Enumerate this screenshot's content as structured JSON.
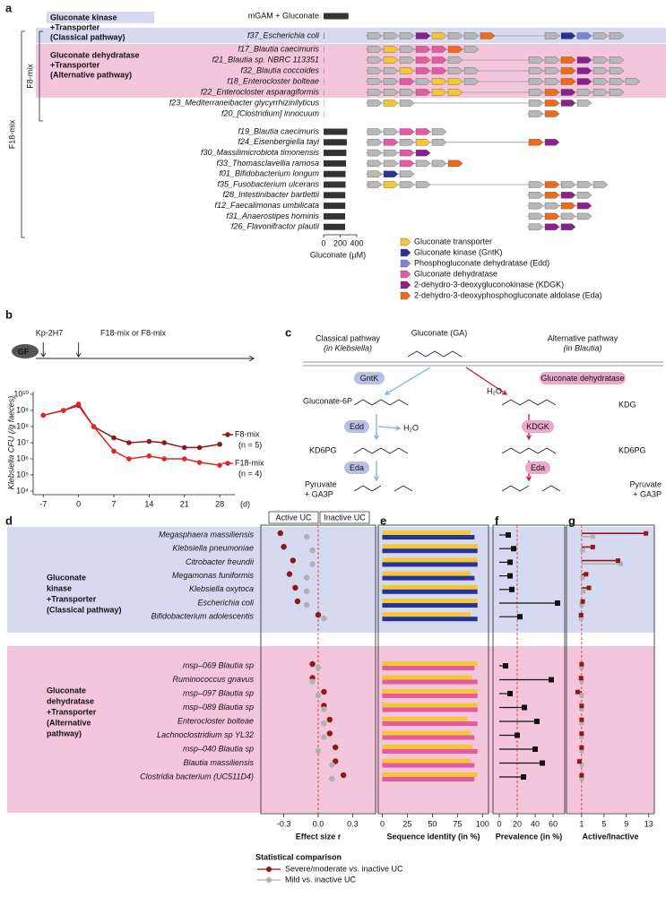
{
  "labels": [
    "a",
    "b",
    "c",
    "d",
    "e",
    "f",
    "g"
  ],
  "panel_a": {
    "type": "bar",
    "groups": [
      {
        "lines": [
          "Gluconate kinase",
          "+Transporter",
          "(Classical pathway)"
        ],
        "color": "#d6daf1",
        "title_color": "#26349a"
      },
      {
        "lines": [
          "Gluconate dehydratase",
          "+Transporter",
          "(Alternative pathway)"
        ],
        "color": "#f4c6dc",
        "title_color": "#c8143c"
      }
    ],
    "brackets": [
      "F8-mix",
      "F18-mix"
    ],
    "strains": [
      "mGAM + Gluconate",
      "f37_Escherichia coli",
      "f17_Blautia caecimuris",
      "f21_Blautia sp. NBRC 113351",
      "f32_Blautia coccoides",
      "f18_Enterocloster bolteae",
      "f22_Enterocloster asparagiformis",
      "f23_Mediterraneibacter glycyrrhizinilyticus",
      "f20_[Clostridium] innocuum",
      "f19_Blautia caecimuris",
      "f24_Eisenbergiella tayi",
      "f30_Massilimicrobiota timonensis",
      "f33_Thomasclavellia ramosa",
      "f01_Bifidobacterium longum",
      "f35_Fusobacterium ulcerans",
      "f28_Intestinibacter bartlettii",
      "f12_Faecalimonas umbilicata",
      "f31_Anaerostipes hominis",
      "f26_Flavonifractor plautii"
    ],
    "values": [
      300,
      5,
      3,
      3,
      3,
      3,
      3,
      3,
      3,
      285,
      280,
      275,
      270,
      265,
      265,
      262,
      262,
      260,
      260
    ],
    "color": "#333333",
    "xlim": [
      0,
      400
    ],
    "xticks": [
      0,
      200,
      400
    ],
    "xlabel": "Gluconate (μM)",
    "other_gene_color": "#b8b8b8",
    "legend": [
      {
        "name": "Gluconate transporter",
        "color": "#f6c634"
      },
      {
        "name": "Gluconate kinase (GntK)",
        "color": "#26349a"
      },
      {
        "name": "Phosphogluconate dehydratase (Edd)",
        "color": "#7b86d6"
      },
      {
        "name": "Gluconate dehydratase",
        "color": "#e65aa4"
      },
      {
        "name": "2-dehydro-3-deoxygluconokinase (KDGK)",
        "color": "#8b1f8f"
      },
      {
        "name": "2-dehydro-3-deoxyphosphogluconate aldolase (Eda)",
        "color": "#f06a1c"
      }
    ]
  },
  "panel_b": {
    "type": "line",
    "icon": "GF",
    "events": [
      "Kp-2H7",
      "F18-mix or F8-mix"
    ],
    "ylabel": "Klebsiella CFU (/g faeces)",
    "x": [
      -7,
      -3,
      0,
      3,
      7,
      10,
      14,
      17,
      21,
      24,
      28
    ],
    "series": [
      {
        "name": "F8-mix",
        "n": "(n = 5)",
        "color": "#8b1a1a",
        "values": [
          500000000,
          1000000000,
          2000000000,
          100000000,
          20000000,
          10000000,
          12000000,
          10000000,
          5000000,
          5000000,
          8000000
        ]
      },
      {
        "name": "F18-mix",
        "n": "(n = 4)",
        "color": "#e0262b",
        "values": [
          500000000,
          1000000000,
          2500000000,
          100000000,
          3000000,
          1000000,
          1500000,
          1000000,
          1000000,
          600000,
          400000
        ]
      }
    ],
    "xlim": [
      -9,
      31
    ],
    "xticks": [
      -7,
      0,
      7,
      14,
      21,
      28
    ],
    "xunit": "(d)",
    "log": true,
    "ylim": [
      10000,
      10000000000
    ],
    "yticks": [
      {
        "value": 10000,
        "label": "10⁴"
      },
      {
        "value": 100000,
        "label": "10⁵"
      },
      {
        "value": 1000000,
        "label": "10⁶"
      },
      {
        "value": 10000000,
        "label": "10⁷"
      },
      {
        "value": 100000000,
        "label": "10⁸"
      },
      {
        "value": 1000000000,
        "label": "10⁹"
      },
      {
        "value": 10000000000,
        "label": "10¹⁰"
      }
    ]
  },
  "panel_c": {
    "substrate": "Gluconate (GA)",
    "classical": [
      "Classical pathway",
      "(in Klebsiella)"
    ],
    "alternative": [
      "Alternative pathway",
      "(in Blautia)"
    ],
    "enzymes": [
      "GntK",
      "Gluconate dehydratase",
      "Edd",
      "KDGK",
      "Eda",
      "Eda"
    ],
    "water": [
      "H₂O",
      "H₂O"
    ],
    "metabolites": [
      "Gluconate-6P",
      "KDG",
      "KD6PG",
      "KD6PG"
    ],
    "products": [
      [
        "Pyruvate",
        "+ GA3P"
      ],
      [
        "Pyruvate",
        "+ GA3P"
      ]
    ]
  },
  "panel_dg": {
    "headers": [
      "Active UC",
      "Inactive UC"
    ],
    "groups": [
      {
        "lines": [
          "Gluconate",
          "kinase",
          "+Transporter",
          "(Classical pathway)"
        ],
        "titled": 2,
        "color": "#d6daf1",
        "title_color": "#26349a",
        "enzyme_color": "#26349a",
        "rows": 7
      },
      {
        "lines": [
          "Gluconate",
          "dehydratase",
          "+Transporter",
          "(Alternative",
          "pathway)"
        ],
        "titled": 2,
        "color": "#f4c6dc",
        "title_color": "#c8143c",
        "enzyme_color": "#e65aa4",
        "rows": 9
      }
    ],
    "species": [
      "Megasphaera massiliensis",
      "Klebsiella pneumoniae",
      "Citrobacter freundii",
      "Megamonas funiformis",
      "Klebsiella oxytoca",
      "Escherichia coli",
      "Bifidobacterium adolescentis",
      "msp–069 Blautia sp",
      "Ruminococcus gnavus",
      "msp–097 Blautia sp",
      "msp–089 Blautia sp",
      "Enterocloster bolteae",
      "Lachnoclostridium sp YL32",
      "msp–040 Blautia sp",
      "Blautia massiliensis",
      "Clostridia bacterium (UC511D4)"
    ],
    "effect": {
      "xlim": [
        -0.5,
        0.5
      ],
      "xticks": [
        -0.3,
        0,
        0.3
      ],
      "xtick_labels": [
        "-0.3",
        "0.0",
        "0.3"
      ],
      "xlabel": "Effect size r",
      "reference": 0,
      "series": [
        {
          "name": "Severe/moderate vs. inactive UC",
          "color": "#8b1a1a",
          "values": [
            -0.33,
            -0.3,
            -0.22,
            -0.25,
            -0.2,
            -0.18,
            0.0,
            -0.05,
            -0.05,
            0.05,
            0.05,
            0.1,
            0.1,
            0.15,
            0.15,
            0.22
          ]
        },
        {
          "name": "Mild vs. inactive UC",
          "color": "#b0b0b0",
          "values": [
            -0.1,
            -0.05,
            -0.05,
            -0.1,
            -0.1,
            -0.1,
            0.05,
            0.0,
            -0.05,
            0.0,
            0.05,
            0.05,
            0.05,
            0.0,
            0.12,
            0.12
          ]
        }
      ]
    },
    "identity": {
      "xlim": [
        -4,
        106
      ],
      "xticks": [
        0,
        25,
        50,
        75,
        100
      ],
      "xlabel": "Sequence identity (in %)",
      "transporter_color": "#f6c634",
      "transporter": [
        88,
        95,
        95,
        88,
        95,
        95,
        88,
        95,
        90,
        95,
        95,
        85,
        88,
        90,
        88,
        95
      ],
      "enzyme": [
        92,
        95,
        95,
        92,
        95,
        95,
        95,
        92,
        95,
        95,
        95,
        95,
        92,
        95,
        92,
        92
      ]
    },
    "prevalence": {
      "xlim": [
        -7,
        73
      ],
      "xticks": [
        0,
        20,
        40,
        60
      ],
      "xlabel": "Prevalence (in %)",
      "reference": 20,
      "color": "#111111",
      "values": [
        10,
        16,
        12,
        12,
        14,
        65,
        23,
        7,
        58,
        12,
        28,
        42,
        20,
        40,
        48,
        27
      ]
    },
    "ratio": {
      "xlim": [
        -1.7,
        14
      ],
      "xticks": [
        1,
        5,
        9,
        13
      ],
      "xlabel": "Active/Inactive",
      "reference": 1,
      "severe": [
        12.5,
        3,
        7.5,
        1.8,
        2.3,
        1.2,
        0.9,
        1,
        0.9,
        0.3,
        1,
        1,
        1,
        1,
        0.6,
        1
      ],
      "mild": [
        3,
        1.2,
        8,
        1.2,
        1.3,
        1,
        0.9,
        1,
        1,
        1,
        1,
        1,
        1,
        1,
        1,
        1
      ]
    },
    "legend_title": "Statistical comparison"
  }
}
